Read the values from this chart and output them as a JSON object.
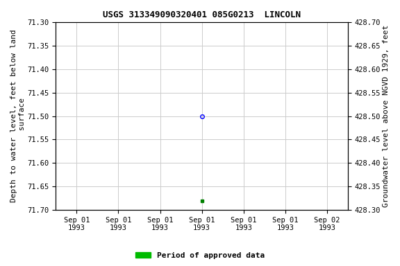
{
  "title": "USGS 313349090320401 085G0213  LINCOLN",
  "ylabel_left": "Depth to water level, feet below land\n surface",
  "ylabel_right": "Groundwater level above NGVD 1929, feet",
  "ylim_left": [
    71.7,
    71.3
  ],
  "ylim_right": [
    428.3,
    428.7
  ],
  "yticks_left": [
    71.3,
    71.35,
    71.4,
    71.45,
    71.5,
    71.55,
    71.6,
    71.65,
    71.7
  ],
  "yticks_right": [
    428.7,
    428.65,
    428.6,
    428.55,
    428.5,
    428.45,
    428.4,
    428.35,
    428.3
  ],
  "data_circle": {
    "value": 71.5,
    "color": "blue",
    "marker": "o",
    "markersize": 4,
    "fillstyle": "none",
    "markeredgewidth": 1.0
  },
  "data_square": {
    "value": 71.68,
    "color": "green",
    "marker": "s",
    "markersize": 2.5
  },
  "xtick_labels": [
    "Sep 01\n1993",
    "Sep 01\n1993",
    "Sep 01\n1993",
    "Sep 01\n1993",
    "Sep 01\n1993",
    "Sep 01\n1993",
    "Sep 02\n1993"
  ],
  "legend_label": "Period of approved data",
  "legend_color": "#00bb00",
  "background_color": "white",
  "grid_color": "#cccccc",
  "title_fontsize": 9,
  "axis_label_fontsize": 8,
  "tick_fontsize": 7.5,
  "legend_fontsize": 8
}
